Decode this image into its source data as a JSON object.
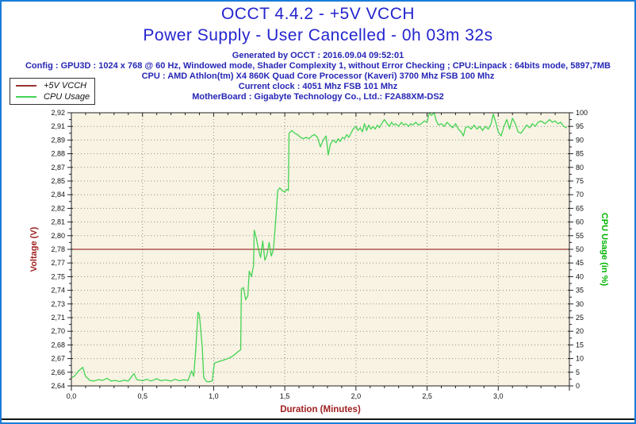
{
  "colors": {
    "frame_blue": "#1b7cd8",
    "title_blue": "#2424cf",
    "info_blue": "#2626b6"
  },
  "header": {
    "title": "OCCT 4.4.2 - +5V VCCH",
    "subtitle": "Power Supply - User Cancelled - 0h 03m 32s",
    "generated": "Generated by OCCT : 2016.09.04 09:52:01",
    "config": "Config : GPU3D : 1024 x 768 @ 60 Hz, Windowed mode, Shader Complexity 1, without Error Checking ; CPU:Linpack : 64bits mode, 5897,7MB",
    "cpu": "CPU : AMD Athlon(tm) X4 860K Quad Core Processor (Kaveri) 3700 Mhz FSB 100 Mhz",
    "clock": "Current clock : 4051 Mhz FSB 101 Mhz",
    "motherboard": "MotherBoard : Gigabyte Technology Co., Ltd.: F2A88XM-DS2"
  },
  "legend": {
    "items": [
      {
        "label": "+5V VCCH",
        "color": "#9b3434"
      },
      {
        "label": "CPU Usage",
        "color": "#43d455"
      }
    ]
  },
  "chart_data": {
    "type": "line",
    "title": "",
    "xlabel": "Duration (Minutes)",
    "ylabel_left": "Voltage (V)",
    "ylabel_right": "CPU Usage (in %)",
    "plot_bg": "#f8f3e2",
    "grid_color": "#8f8f8f",
    "axis_color": "#222222",
    "tick_label_color": "#111111",
    "label_colors": {
      "left": "#a02020",
      "right": "#00b400",
      "x": "#a02020"
    },
    "x_range": [
      0,
      3.5
    ],
    "x_major_step": 0.5,
    "x_minor_step": 0.1,
    "x_tick_labels": [
      "0,0",
      "0,5",
      "1,0",
      "1,5",
      "2,0",
      "2,5",
      "3,0"
    ],
    "grid": true,
    "legend_position": "top-left",
    "left_axis": {
      "min": 2.64,
      "max": 2.92,
      "tick_labels": [
        "2,64",
        "2,66",
        "2,67",
        "2,68",
        "2,70",
        "2,71",
        "2,73",
        "2,74",
        "2,75",
        "2,77",
        "2,78",
        "2,80",
        "2,81",
        "2,82",
        "2,84",
        "2,85",
        "2,87",
        "2,88",
        "2,89",
        "2,91",
        "2,92"
      ]
    },
    "right_axis": {
      "min": 0,
      "max": 100,
      "tick_labels": [
        "0",
        "5",
        "10",
        "15",
        "20",
        "25",
        "30",
        "35",
        "40",
        "45",
        "50",
        "55",
        "60",
        "65",
        "70",
        "75",
        "80",
        "85",
        "90",
        "95",
        "100"
      ]
    },
    "series": [
      {
        "name": "+5V VCCH",
        "axis": "left",
        "color": "#9b3434",
        "points": [
          [
            0,
            2.78
          ],
          [
            3.5,
            2.78
          ]
        ]
      },
      {
        "name": "CPU Usage",
        "axis": "right",
        "color": "#43d455",
        "points": [
          [
            0.0,
            3
          ],
          [
            0.02,
            3.5
          ],
          [
            0.05,
            5.5
          ],
          [
            0.08,
            6.8
          ],
          [
            0.1,
            3.5
          ],
          [
            0.13,
            2
          ],
          [
            0.16,
            1.8
          ],
          [
            0.19,
            2.3
          ],
          [
            0.22,
            2
          ],
          [
            0.25,
            2.8
          ],
          [
            0.28,
            1.8
          ],
          [
            0.31,
            2
          ],
          [
            0.34,
            1.6
          ],
          [
            0.37,
            2.1
          ],
          [
            0.4,
            1.8
          ],
          [
            0.44,
            4.5
          ],
          [
            0.46,
            2.3
          ],
          [
            0.5,
            1.9
          ],
          [
            0.53,
            2.4
          ],
          [
            0.56,
            1.8
          ],
          [
            0.6,
            2.6
          ],
          [
            0.63,
            1.9
          ],
          [
            0.66,
            2.2
          ],
          [
            0.7,
            1.8
          ],
          [
            0.73,
            2.4
          ],
          [
            0.76,
            1.9
          ],
          [
            0.79,
            2.2
          ],
          [
            0.82,
            2.0
          ],
          [
            0.845,
            5.5
          ],
          [
            0.86,
            3.5
          ],
          [
            0.875,
            14
          ],
          [
            0.89,
            27
          ],
          [
            0.9,
            26
          ],
          [
            0.92,
            14
          ],
          [
            0.93,
            3
          ],
          [
            0.95,
            1.6
          ],
          [
            0.97,
            1.5
          ],
          [
            0.99,
            1.8
          ],
          [
            1.005,
            8.3
          ],
          [
            1.03,
            8.8
          ],
          [
            1.06,
            9.3
          ],
          [
            1.09,
            9.8
          ],
          [
            1.12,
            10.5
          ],
          [
            1.15,
            11.5
          ],
          [
            1.17,
            12.5
          ],
          [
            1.19,
            13.2
          ],
          [
            1.195,
            35.5
          ],
          [
            1.21,
            36
          ],
          [
            1.225,
            31.5
          ],
          [
            1.24,
            33
          ],
          [
            1.25,
            42
          ],
          [
            1.265,
            40
          ],
          [
            1.28,
            44
          ],
          [
            1.285,
            57
          ],
          [
            1.3,
            54
          ],
          [
            1.315,
            50
          ],
          [
            1.33,
            47
          ],
          [
            1.345,
            53
          ],
          [
            1.36,
            46
          ],
          [
            1.375,
            48
          ],
          [
            1.39,
            52.5
          ],
          [
            1.405,
            47.5
          ],
          [
            1.42,
            50
          ],
          [
            1.435,
            60
          ],
          [
            1.45,
            71.5
          ],
          [
            1.465,
            72.5
          ],
          [
            1.48,
            71.5
          ],
          [
            1.5,
            71
          ],
          [
            1.515,
            72
          ],
          [
            1.525,
            71.5
          ],
          [
            1.53,
            92.5
          ],
          [
            1.55,
            93.5
          ],
          [
            1.57,
            92.5
          ],
          [
            1.59,
            92
          ],
          [
            1.61,
            91
          ],
          [
            1.63,
            90.5
          ],
          [
            1.65,
            91
          ],
          [
            1.67,
            90.5
          ],
          [
            1.69,
            91.5
          ],
          [
            1.71,
            92
          ],
          [
            1.73,
            91
          ],
          [
            1.75,
            87.5
          ],
          [
            1.77,
            90
          ],
          [
            1.79,
            91.5
          ],
          [
            1.805,
            84.5
          ],
          [
            1.82,
            88.5
          ],
          [
            1.84,
            90
          ],
          [
            1.86,
            89
          ],
          [
            1.875,
            90.5
          ],
          [
            1.89,
            89.5
          ],
          [
            1.905,
            91
          ],
          [
            1.92,
            90.5
          ],
          [
            1.935,
            92
          ],
          [
            1.95,
            91
          ],
          [
            1.965,
            92.5
          ],
          [
            1.98,
            94
          ],
          [
            2.0,
            95
          ],
          [
            2.015,
            93.5
          ],
          [
            2.03,
            94.5
          ],
          [
            2.045,
            93
          ],
          [
            2.06,
            96
          ],
          [
            2.075,
            93.5
          ],
          [
            2.09,
            95.5
          ],
          [
            2.105,
            94
          ],
          [
            2.12,
            95
          ],
          [
            2.135,
            94
          ],
          [
            2.15,
            95.5
          ],
          [
            2.165,
            94.5
          ],
          [
            2.18,
            96
          ],
          [
            2.2,
            97.5
          ],
          [
            2.22,
            96
          ],
          [
            2.235,
            95
          ],
          [
            2.25,
            96.5
          ],
          [
            2.265,
            95.5
          ],
          [
            2.28,
            96
          ],
          [
            2.3,
            95
          ],
          [
            2.32,
            96.5
          ],
          [
            2.335,
            95.5
          ],
          [
            2.35,
            96
          ],
          [
            2.37,
            95
          ],
          [
            2.385,
            96
          ],
          [
            2.4,
            95.5
          ],
          [
            2.42,
            96.5
          ],
          [
            2.44,
            95.5
          ],
          [
            2.46,
            96
          ],
          [
            2.48,
            97
          ],
          [
            2.5,
            96.5
          ],
          [
            2.515,
            100
          ],
          [
            2.53,
            99
          ],
          [
            2.55,
            100
          ],
          [
            2.565,
            97
          ],
          [
            2.58,
            95.5
          ],
          [
            2.6,
            96
          ],
          [
            2.62,
            95
          ],
          [
            2.64,
            96.5
          ],
          [
            2.66,
            95.5
          ],
          [
            2.68,
            94.5
          ],
          [
            2.7,
            96
          ],
          [
            2.72,
            94
          ],
          [
            2.74,
            93
          ],
          [
            2.755,
            91.5
          ],
          [
            2.77,
            94.5
          ],
          [
            2.79,
            95
          ],
          [
            2.81,
            94
          ],
          [
            2.83,
            95.5
          ],
          [
            2.85,
            94
          ],
          [
            2.87,
            95
          ],
          [
            2.89,
            93.5
          ],
          [
            2.91,
            95
          ],
          [
            2.93,
            94
          ],
          [
            2.95,
            96
          ],
          [
            2.965,
            99.5
          ],
          [
            2.98,
            97
          ],
          [
            3.0,
            93
          ],
          [
            3.02,
            91.5
          ],
          [
            3.04,
            95
          ],
          [
            3.06,
            97.5
          ],
          [
            3.08,
            94
          ],
          [
            3.1,
            98
          ],
          [
            3.12,
            96
          ],
          [
            3.14,
            93
          ],
          [
            3.16,
            92.5
          ],
          [
            3.18,
            94
          ],
          [
            3.2,
            95.5
          ],
          [
            3.22,
            94.5
          ],
          [
            3.24,
            96
          ],
          [
            3.26,
            95
          ],
          [
            3.28,
            96.5
          ],
          [
            3.3,
            97
          ],
          [
            3.33,
            96
          ],
          [
            3.36,
            97.5
          ],
          [
            3.38,
            96.5
          ],
          [
            3.4,
            97
          ],
          [
            3.42,
            96
          ],
          [
            3.44,
            96.5
          ],
          [
            3.46,
            95
          ],
          [
            3.48,
            94.5
          ]
        ]
      }
    ]
  }
}
